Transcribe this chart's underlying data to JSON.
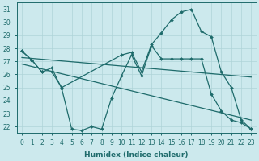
{
  "title": "",
  "xlabel": "Humidex (Indice chaleur)",
  "bg_color": "#cce9ed",
  "grid_color": "#afd4d8",
  "line_color": "#1e6b6b",
  "xlim": [
    -0.5,
    23.5
  ],
  "ylim": [
    21.5,
    31.5
  ],
  "xticks": [
    0,
    1,
    2,
    3,
    4,
    5,
    6,
    7,
    8,
    9,
    10,
    11,
    12,
    13,
    14,
    15,
    16,
    17,
    18,
    19,
    20,
    21,
    22,
    23
  ],
  "yticks": [
    22,
    23,
    24,
    25,
    26,
    27,
    28,
    29,
    30,
    31
  ],
  "line1_x": [
    0,
    1,
    2,
    3,
    4,
    10,
    11,
    12,
    13,
    14,
    15,
    16,
    17,
    18,
    19,
    20,
    21,
    22,
    23
  ],
  "line1_y": [
    27.8,
    27.1,
    26.2,
    26.2,
    25.0,
    27.5,
    27.7,
    26.2,
    28.3,
    29.2,
    30.2,
    30.8,
    31.0,
    29.3,
    28.9,
    26.2,
    25.0,
    22.5,
    21.8
  ],
  "line2_x": [
    0,
    1,
    2,
    3,
    4,
    5,
    6,
    7,
    8,
    9,
    10,
    11,
    12,
    13,
    14,
    15,
    16,
    17,
    18,
    19,
    20,
    21,
    22,
    23
  ],
  "line2_y": [
    27.8,
    27.1,
    26.2,
    26.5,
    24.9,
    21.8,
    21.7,
    22.0,
    21.8,
    24.2,
    25.9,
    27.5,
    25.9,
    28.2,
    27.2,
    27.2,
    27.2,
    27.2,
    27.2,
    24.5,
    23.2,
    22.5,
    22.3,
    21.8
  ],
  "line3_x": [
    0,
    23
  ],
  "line3_y": [
    27.3,
    25.8
  ],
  "line4_x": [
    0,
    23
  ],
  "line4_y": [
    26.8,
    22.5
  ],
  "markersize": 2.0,
  "linewidth": 0.9,
  "tick_fontsize": 5.5,
  "xlabel_fontsize": 6.5
}
